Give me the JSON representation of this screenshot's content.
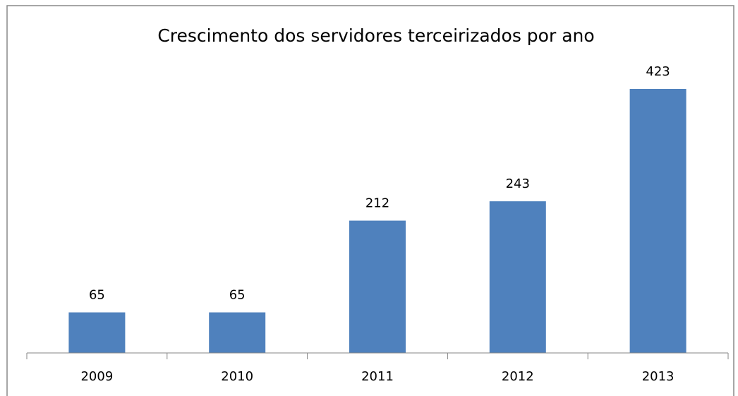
{
  "chart_data": {
    "type": "bar",
    "title": "Crescimento dos servidores terceirizados por ano",
    "categories": [
      "2009",
      "2010",
      "2011",
      "2012",
      "2013"
    ],
    "values": [
      65,
      65,
      212,
      243,
      423
    ],
    "color": "#4f81bd"
  }
}
